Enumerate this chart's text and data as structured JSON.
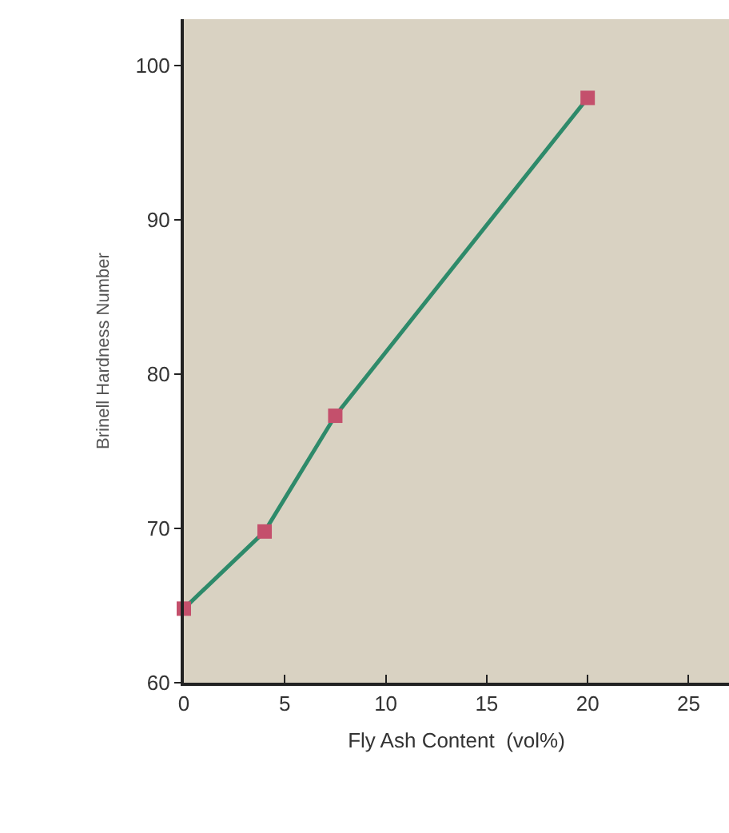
{
  "chart_data": {
    "type": "line",
    "xlabel": "Fly Ash Content  (vol%)",
    "ylabel": "Brinell Hardness Number",
    "x": [
      0,
      4,
      7.5,
      20
    ],
    "series": [
      {
        "color": "#2e8a6a",
        "values": [
          64.8,
          69.8,
          77.3,
          97.9
        ]
      }
    ],
    "marker": "square",
    "line_style": "solid",
    "grid": false,
    "xlim": [
      0,
      27
    ],
    "xticks": [
      0,
      5,
      10,
      15,
      20,
      25
    ],
    "ylim": [
      60,
      103
    ],
    "yticks": [
      60,
      70,
      80,
      90,
      100
    ]
  }
}
